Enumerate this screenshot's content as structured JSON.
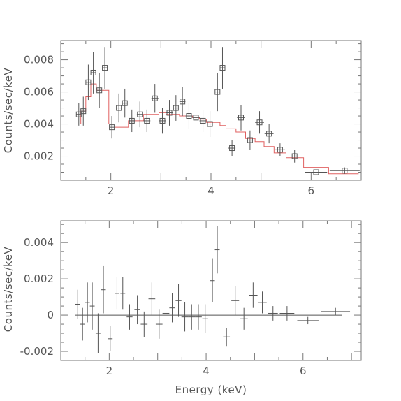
{
  "chart_data": [
    {
      "type": "scatter",
      "title": "",
      "xlabel": "",
      "ylabel": "Counts/sec/keV",
      "xlim": [
        1.0,
        7.0
      ],
      "ylim": [
        0.0005,
        0.0092
      ],
      "x_ticks": [
        2,
        4,
        6
      ],
      "x_tick_labels": [
        "2",
        "4",
        "6"
      ],
      "y_ticks": [
        0.002,
        0.004,
        0.006,
        0.008
      ],
      "y_tick_labels": [
        "0.002",
        "0.004",
        "0.006",
        "0.008"
      ],
      "marker": "open-square",
      "colors": {
        "data": "#555555",
        "model": "#e06060"
      },
      "series": [
        {
          "points": [
            {
              "x": 1.36,
              "y": 0.0046,
              "xerr": 0.05,
              "yerr": 0.0007
            },
            {
              "x": 1.45,
              "y": 0.0048,
              "xerr": 0.05,
              "yerr": 0.0009
            },
            {
              "x": 1.55,
              "y": 0.0066,
              "xerr": 0.05,
              "yerr": 0.0011
            },
            {
              "x": 1.65,
              "y": 0.0072,
              "xerr": 0.05,
              "yerr": 0.0013
            },
            {
              "x": 1.77,
              "y": 0.0061,
              "xerr": 0.05,
              "yerr": 0.0011
            },
            {
              "x": 1.88,
              "y": 0.0075,
              "xerr": 0.05,
              "yerr": 0.0013
            },
            {
              "x": 2.02,
              "y": 0.0038,
              "xerr": 0.05,
              "yerr": 0.0007
            },
            {
              "x": 2.16,
              "y": 0.005,
              "xerr": 0.05,
              "yerr": 0.0009
            },
            {
              "x": 2.28,
              "y": 0.0053,
              "xerr": 0.05,
              "yerr": 0.0009
            },
            {
              "x": 2.42,
              "y": 0.0042,
              "xerr": 0.06,
              "yerr": 0.0007
            },
            {
              "x": 2.58,
              "y": 0.0046,
              "xerr": 0.06,
              "yerr": 0.0008
            },
            {
              "x": 2.72,
              "y": 0.0042,
              "xerr": 0.07,
              "yerr": 0.0007
            },
            {
              "x": 2.88,
              "y": 0.0056,
              "xerr": 0.07,
              "yerr": 0.0009
            },
            {
              "x": 3.03,
              "y": 0.0042,
              "xerr": 0.07,
              "yerr": 0.0008
            },
            {
              "x": 3.17,
              "y": 0.0047,
              "xerr": 0.07,
              "yerr": 0.0008
            },
            {
              "x": 3.3,
              "y": 0.005,
              "xerr": 0.06,
              "yerr": 0.0008
            },
            {
              "x": 3.43,
              "y": 0.0054,
              "xerr": 0.06,
              "yerr": 0.0009
            },
            {
              "x": 3.56,
              "y": 0.0045,
              "xerr": 0.07,
              "yerr": 0.0008
            },
            {
              "x": 3.7,
              "y": 0.0044,
              "xerr": 0.07,
              "yerr": 0.0007
            },
            {
              "x": 3.84,
              "y": 0.0042,
              "xerr": 0.07,
              "yerr": 0.0007
            },
            {
              "x": 3.98,
              "y": 0.004,
              "xerr": 0.06,
              "yerr": 0.0008
            },
            {
              "x": 4.13,
              "y": 0.006,
              "xerr": 0.05,
              "yerr": 0.0012
            },
            {
              "x": 4.23,
              "y": 0.0075,
              "xerr": 0.05,
              "yerr": 0.0013
            },
            {
              "x": 4.42,
              "y": 0.0025,
              "xerr": 0.07,
              "yerr": 0.0005
            },
            {
              "x": 4.6,
              "y": 0.0044,
              "xerr": 0.08,
              "yerr": 0.0008
            },
            {
              "x": 4.78,
              "y": 0.003,
              "xerr": 0.08,
              "yerr": 0.0006
            },
            {
              "x": 4.97,
              "y": 0.0041,
              "xerr": 0.09,
              "yerr": 0.0007
            },
            {
              "x": 5.16,
              "y": 0.0034,
              "xerr": 0.09,
              "yerr": 0.0006
            },
            {
              "x": 5.38,
              "y": 0.0024,
              "xerr": 0.1,
              "yerr": 0.0004
            },
            {
              "x": 5.67,
              "y": 0.002,
              "xerr": 0.15,
              "yerr": 0.0004
            },
            {
              "x": 6.1,
              "y": 0.001,
              "xerr": 0.22,
              "yerr": 0.0002
            },
            {
              "x": 6.67,
              "y": 0.0011,
              "xerr": 0.3,
              "yerr": 0.0002
            }
          ]
        },
        {
          "style": "step",
          "steps": [
            {
              "x0": 1.31,
              "x1": 1.4,
              "y": 0.004
            },
            {
              "x0": 1.4,
              "x1": 1.5,
              "y": 0.0048
            },
            {
              "x0": 1.5,
              "x1": 1.6,
              "y": 0.0057
            },
            {
              "x0": 1.6,
              "x1": 1.71,
              "y": 0.0065
            },
            {
              "x0": 1.71,
              "x1": 1.83,
              "y": 0.0061
            },
            {
              "x0": 1.83,
              "x1": 1.96,
              "y": 0.0061
            },
            {
              "x0": 1.96,
              "x1": 2.08,
              "y": 0.004
            },
            {
              "x0": 2.08,
              "x1": 2.23,
              "y": 0.0038
            },
            {
              "x0": 2.23,
              "x1": 2.35,
              "y": 0.0038
            },
            {
              "x0": 2.35,
              "x1": 2.5,
              "y": 0.0042
            },
            {
              "x0": 2.5,
              "x1": 2.65,
              "y": 0.0042
            },
            {
              "x0": 2.65,
              "x1": 2.8,
              "y": 0.0046
            },
            {
              "x0": 2.8,
              "x1": 2.96,
              "y": 0.0046
            },
            {
              "x0": 2.96,
              "x1": 3.1,
              "y": 0.0047
            },
            {
              "x0": 3.1,
              "x1": 3.24,
              "y": 0.0046
            },
            {
              "x0": 3.24,
              "x1": 3.37,
              "y": 0.0046
            },
            {
              "x0": 3.37,
              "x1": 3.5,
              "y": 0.0045
            },
            {
              "x0": 3.5,
              "x1": 3.63,
              "y": 0.0045
            },
            {
              "x0": 3.63,
              "x1": 3.77,
              "y": 0.0044
            },
            {
              "x0": 3.77,
              "x1": 3.91,
              "y": 0.0043
            },
            {
              "x0": 3.91,
              "x1": 4.05,
              "y": 0.0041
            },
            {
              "x0": 4.05,
              "x1": 4.18,
              "y": 0.0041
            },
            {
              "x0": 4.18,
              "x1": 4.3,
              "y": 0.0039
            },
            {
              "x0": 4.3,
              "x1": 4.5,
              "y": 0.0037
            },
            {
              "x0": 4.5,
              "x1": 4.69,
              "y": 0.0035
            },
            {
              "x0": 4.69,
              "x1": 4.88,
              "y": 0.0031
            },
            {
              "x0": 4.88,
              "x1": 5.06,
              "y": 0.0029
            },
            {
              "x0": 5.06,
              "x1": 5.26,
              "y": 0.0026
            },
            {
              "x0": 5.26,
              "x1": 5.5,
              "y": 0.0022
            },
            {
              "x0": 5.5,
              "x1": 5.85,
              "y": 0.0019
            },
            {
              "x0": 5.85,
              "x1": 6.35,
              "y": 0.0013
            },
            {
              "x0": 6.35,
              "x1": 6.95,
              "y": 0.0009
            }
          ]
        }
      ]
    },
    {
      "type": "scatter",
      "title": "",
      "xlabel": "Energy (keV)",
      "ylabel": "Counts/sec/keV",
      "xlim": [
        1.0,
        7.2
      ],
      "ylim": [
        -0.0025,
        0.0052
      ],
      "x_ticks": [
        2,
        4,
        6
      ],
      "x_tick_labels": [
        "2",
        "4",
        "6"
      ],
      "y_ticks": [
        -0.002,
        0,
        0.002,
        0.004
      ],
      "y_tick_labels": [
        "-0.002",
        "0",
        "0.002",
        "0.004"
      ],
      "reference_line": 0,
      "marker": "none",
      "colors": {
        "data": "#555555"
      },
      "series": [
        {
          "points": [
            {
              "x": 1.35,
              "y": 0.0006,
              "xerr": 0.05,
              "yerr": 0.0008
            },
            {
              "x": 1.45,
              "y": -0.0005,
              "xerr": 0.05,
              "yerr": 0.0009
            },
            {
              "x": 1.55,
              "y": 0.0007,
              "xerr": 0.05,
              "yerr": 0.0011
            },
            {
              "x": 1.65,
              "y": 0.0005,
              "xerr": 0.05,
              "yerr": 0.0013
            },
            {
              "x": 1.77,
              "y": -0.001,
              "xerr": 0.05,
              "yerr": 0.0011
            },
            {
              "x": 1.88,
              "y": 0.0014,
              "xerr": 0.05,
              "yerr": 0.0013
            },
            {
              "x": 2.02,
              "y": -0.0013,
              "xerr": 0.05,
              "yerr": 0.0007
            },
            {
              "x": 2.16,
              "y": 0.0012,
              "xerr": 0.05,
              "yerr": 0.0009
            },
            {
              "x": 2.28,
              "y": 0.0012,
              "xerr": 0.05,
              "yerr": 0.0009
            },
            {
              "x": 2.42,
              "y": -0.0001,
              "xerr": 0.06,
              "yerr": 0.0007
            },
            {
              "x": 2.58,
              "y": 0.0003,
              "xerr": 0.06,
              "yerr": 0.0008
            },
            {
              "x": 2.72,
              "y": -0.0005,
              "xerr": 0.07,
              "yerr": 0.0007
            },
            {
              "x": 2.88,
              "y": 0.0009,
              "xerr": 0.07,
              "yerr": 0.0009
            },
            {
              "x": 3.03,
              "y": -0.0005,
              "xerr": 0.07,
              "yerr": 0.0008
            },
            {
              "x": 3.17,
              "y": 0.0001,
              "xerr": 0.07,
              "yerr": 0.0008
            },
            {
              "x": 3.3,
              "y": 0.0004,
              "xerr": 0.06,
              "yerr": 0.0008
            },
            {
              "x": 3.43,
              "y": 0.0008,
              "xerr": 0.06,
              "yerr": 0.0009
            },
            {
              "x": 3.56,
              "y": -0.0001,
              "xerr": 0.07,
              "yerr": 0.0008
            },
            {
              "x": 3.7,
              "y": -0.0001,
              "xerr": 0.07,
              "yerr": 0.0007
            },
            {
              "x": 3.84,
              "y": -0.0001,
              "xerr": 0.07,
              "yerr": 0.0007
            },
            {
              "x": 3.98,
              "y": -0.0002,
              "xerr": 0.06,
              "yerr": 0.0008
            },
            {
              "x": 4.13,
              "y": 0.0019,
              "xerr": 0.05,
              "yerr": 0.0012
            },
            {
              "x": 4.23,
              "y": 0.0036,
              "xerr": 0.05,
              "yerr": 0.0013
            },
            {
              "x": 4.42,
              "y": -0.0012,
              "xerr": 0.07,
              "yerr": 0.0005
            },
            {
              "x": 4.6,
              "y": 0.0008,
              "xerr": 0.08,
              "yerr": 0.0008
            },
            {
              "x": 4.78,
              "y": -0.0002,
              "xerr": 0.08,
              "yerr": 0.0006
            },
            {
              "x": 4.97,
              "y": 0.0011,
              "xerr": 0.09,
              "yerr": 0.0007
            },
            {
              "x": 5.16,
              "y": 0.0007,
              "xerr": 0.09,
              "yerr": 0.0006
            },
            {
              "x": 5.38,
              "y": 0.0001,
              "xerr": 0.1,
              "yerr": 0.0004
            },
            {
              "x": 5.67,
              "y": 0.0001,
              "xerr": 0.15,
              "yerr": 0.0004
            },
            {
              "x": 6.1,
              "y": -0.0003,
              "xerr": 0.22,
              "yerr": 0.0002
            },
            {
              "x": 6.67,
              "y": 0.0002,
              "xerr": 0.3,
              "yerr": 0.0002
            }
          ]
        }
      ]
    }
  ]
}
